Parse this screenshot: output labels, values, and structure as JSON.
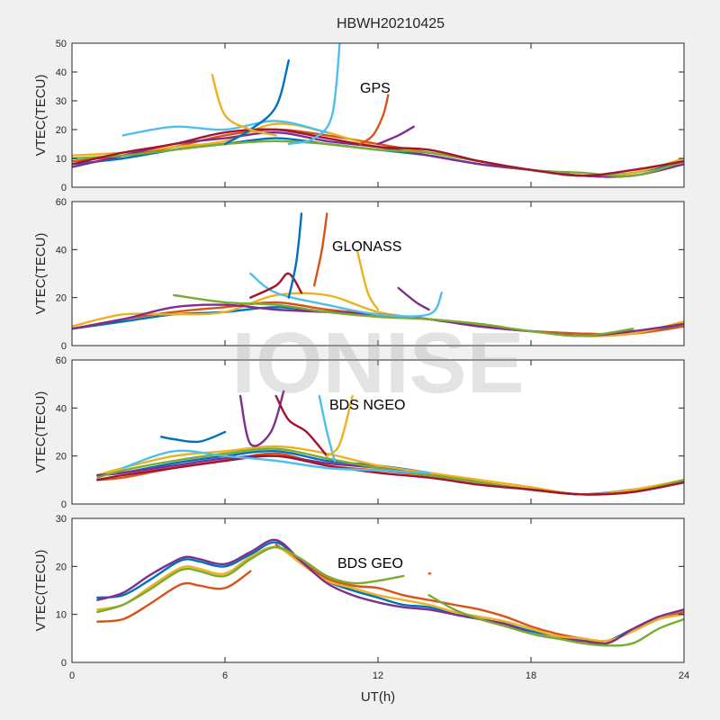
{
  "figure": {
    "title": "HBWH20210425",
    "xlabel": "UT(h)",
    "watermark": "IONISE"
  },
  "colors": [
    "#0072BD",
    "#D95319",
    "#EDB120",
    "#7E2F8E",
    "#77AC30",
    "#4DBEEE",
    "#A2142F"
  ],
  "chart_data": [
    {
      "type": "line",
      "label": "GPS",
      "ylabel": "VTEC(TECU)",
      "xlim": [
        0,
        24
      ],
      "ylim": [
        0,
        50
      ],
      "yticks": [
        0,
        10,
        20,
        30,
        40,
        50
      ],
      "xticks": [
        0,
        6,
        12,
        18,
        24
      ],
      "xticklabels_shown": false,
      "series": [
        {
          "color": "#0072BD",
          "x": [
            0,
            2,
            4,
            6,
            8,
            10,
            12,
            14,
            16,
            18,
            20,
            22,
            24
          ],
          "y": [
            8,
            10,
            13,
            15,
            17,
            15,
            13,
            11,
            8,
            6,
            4,
            5,
            9
          ]
        },
        {
          "color": "#D95319",
          "x": [
            0,
            2,
            4,
            6,
            8,
            10,
            12,
            14,
            16,
            18,
            20,
            22,
            24
          ],
          "y": [
            9,
            11,
            14,
            18,
            20,
            18,
            15,
            12,
            9,
            6,
            4,
            4,
            8
          ]
        },
        {
          "color": "#EDB120",
          "x": [
            0,
            2,
            4,
            6,
            8,
            10,
            12,
            14,
            16,
            18,
            20,
            22,
            24
          ],
          "y": [
            11,
            12,
            14,
            16,
            22,
            19,
            14,
            12,
            9,
            6,
            4,
            5,
            10
          ]
        },
        {
          "color": "#7E2F8E",
          "x": [
            0,
            2,
            4,
            6,
            8,
            10,
            12,
            14,
            16,
            18,
            20,
            22,
            24
          ],
          "y": [
            7,
            11,
            15,
            17,
            19,
            16,
            14,
            11,
            8,
            6,
            4,
            4,
            8
          ]
        },
        {
          "color": "#77AC30",
          "x": [
            0,
            2,
            4,
            6,
            8,
            10,
            12,
            14,
            16,
            18,
            20,
            22,
            24
          ],
          "y": [
            10,
            11,
            13,
            15,
            16,
            15,
            13,
            12,
            9,
            6,
            5,
            4,
            9
          ]
        },
        {
          "color": "#A2142F",
          "x": [
            0,
            2,
            4,
            6,
            8,
            10,
            12,
            14,
            16,
            18,
            20,
            22,
            24
          ],
          "y": [
            8,
            12,
            15,
            19,
            20,
            17,
            14,
            13,
            9,
            6,
            4,
            6,
            9
          ]
        },
        {
          "color": "#4DBEEE",
          "x": [
            2,
            4,
            6,
            8,
            10
          ],
          "y": [
            18,
            21,
            20,
            23,
            19
          ]
        },
        {
          "color": "#0072BD",
          "x": [
            6,
            7,
            8,
            8.5
          ],
          "y": [
            15,
            20,
            28,
            44
          ]
        },
        {
          "color": "#4DBEEE",
          "x": [
            8.5,
            9.5,
            10.2,
            10.5
          ],
          "y": [
            15,
            17,
            25,
            50
          ]
        },
        {
          "color": "#D95319",
          "x": [
            11.3,
            11.8,
            12.2,
            12.4
          ],
          "y": [
            15,
            18,
            25,
            32
          ]
        },
        {
          "color": "#EDB120",
          "x": [
            5.5,
            6,
            7,
            8
          ],
          "y": [
            39,
            25,
            20,
            18
          ]
        },
        {
          "color": "#7E2F8E",
          "x": [
            12,
            12.8,
            13.4
          ],
          "y": [
            15,
            18,
            21
          ]
        }
      ]
    },
    {
      "type": "line",
      "label": "GLONASS",
      "ylabel": "VTEC(TECU)",
      "xlim": [
        0,
        24
      ],
      "ylim": [
        0,
        60
      ],
      "yticks": [
        0,
        20,
        40,
        60
      ],
      "xticks": [
        0,
        6,
        12,
        18,
        24
      ],
      "xticklabels_shown": false,
      "series": [
        {
          "color": "#0072BD",
          "x": [
            0,
            2,
            4,
            6,
            8,
            10,
            12,
            14,
            16,
            18,
            20,
            22,
            24
          ],
          "y": [
            7,
            10,
            13,
            14,
            16,
            14,
            13,
            11,
            8,
            6,
            5,
            5,
            9
          ]
        },
        {
          "color": "#D95319",
          "x": [
            0,
            2,
            4,
            6,
            8,
            10,
            12,
            14,
            16,
            18,
            20,
            22,
            24
          ],
          "y": [
            7,
            11,
            14,
            16,
            18,
            15,
            13,
            11,
            8,
            6,
            5,
            5,
            8
          ]
        },
        {
          "color": "#EDB120",
          "x": [
            0,
            2,
            4,
            6,
            8,
            10,
            12,
            14,
            16,
            18,
            20,
            22,
            24
          ],
          "y": [
            8,
            13,
            13,
            14,
            21,
            21,
            14,
            11,
            9,
            6,
            4,
            5,
            10
          ]
        },
        {
          "color": "#7E2F8E",
          "x": [
            0,
            2,
            4,
            6,
            8,
            10,
            12,
            14,
            16,
            18,
            20,
            22,
            24
          ],
          "y": [
            7,
            11,
            16,
            17,
            15,
            14,
            13,
            11,
            8,
            6,
            4,
            6,
            9
          ]
        },
        {
          "color": "#77AC30",
          "x": [
            4,
            6,
            8,
            10,
            12,
            14,
            16,
            18,
            20,
            22
          ],
          "y": [
            21,
            18,
            17,
            14,
            12,
            11,
            9,
            6,
            4,
            7
          ]
        },
        {
          "color": "#4DBEEE",
          "x": [
            7,
            8,
            10,
            12,
            14,
            14.5
          ],
          "y": [
            30,
            22,
            17,
            13,
            13,
            22
          ]
        },
        {
          "color": "#A2142F",
          "x": [
            7,
            8,
            8.5,
            9
          ],
          "y": [
            20,
            25,
            30,
            22
          ]
        },
        {
          "color": "#0072BD",
          "x": [
            8.5,
            8.8,
            9
          ],
          "y": [
            20,
            35,
            55
          ]
        },
        {
          "color": "#D95319",
          "x": [
            9.5,
            9.8,
            10
          ],
          "y": [
            25,
            40,
            55
          ]
        },
        {
          "color": "#EDB120",
          "x": [
            11.2,
            11.6,
            12
          ],
          "y": [
            39,
            22,
            15
          ]
        },
        {
          "color": "#7E2F8E",
          "x": [
            12.8,
            13.5,
            14
          ],
          "y": [
            24,
            18,
            15
          ]
        }
      ]
    },
    {
      "type": "line",
      "label": "BDS NGEO",
      "ylabel": "VTEC(TECU)",
      "xlim": [
        0,
        24
      ],
      "ylim": [
        0,
        60
      ],
      "yticks": [
        0,
        20,
        40,
        60
      ],
      "xticks": [
        0,
        6,
        12,
        18,
        24
      ],
      "xticklabels_shown": false,
      "series": [
        {
          "color": "#0072BD",
          "x": [
            1,
            2,
            4,
            6,
            8,
            10,
            12,
            14,
            16,
            18,
            20,
            22,
            24
          ],
          "y": [
            12,
            13,
            17,
            20,
            22,
            18,
            16,
            13,
            9,
            6,
            4,
            6,
            9
          ]
        },
        {
          "color": "#D95319",
          "x": [
            1,
            2,
            4,
            6,
            8,
            10,
            12,
            14,
            16,
            18,
            20,
            22,
            24
          ],
          "y": [
            10,
            11,
            15,
            18,
            21,
            16,
            14,
            12,
            9,
            6,
            4,
            5,
            10
          ]
        },
        {
          "color": "#EDB120",
          "x": [
            1,
            2,
            4,
            6,
            8,
            10,
            12,
            14,
            16,
            18,
            20,
            22,
            24
          ],
          "y": [
            12,
            15,
            20,
            22,
            24,
            21,
            16,
            13,
            10,
            7,
            4,
            6,
            10
          ]
        },
        {
          "color": "#7E2F8E",
          "x": [
            1,
            2,
            4,
            6,
            8,
            10,
            12,
            14,
            16,
            18,
            20,
            22,
            24
          ],
          "y": [
            12,
            13,
            16,
            19,
            20,
            17,
            15,
            12,
            9,
            6,
            4,
            5,
            9
          ]
        },
        {
          "color": "#77AC30",
          "x": [
            1,
            2,
            4,
            6,
            8,
            10,
            12,
            14,
            16,
            18,
            20,
            22,
            24
          ],
          "y": [
            11,
            14,
            18,
            21,
            23,
            19,
            15,
            12,
            9,
            6,
            4,
            5,
            10
          ]
        },
        {
          "color": "#A2142F",
          "x": [
            1,
            2,
            4,
            6,
            8,
            10,
            12,
            14,
            16,
            18,
            20,
            22,
            24
          ],
          "y": [
            10,
            12,
            15,
            18,
            20,
            16,
            13,
            11,
            8,
            6,
            4,
            5,
            9
          ]
        },
        {
          "color": "#4DBEEE",
          "x": [
            2,
            4,
            6,
            8,
            10,
            12,
            14
          ],
          "y": [
            15,
            22,
            20,
            18,
            15,
            14,
            13
          ]
        },
        {
          "color": "#7E2F8E",
          "x": [
            6.6,
            7,
            7.8,
            8.3
          ],
          "y": [
            45,
            25,
            30,
            47
          ]
        },
        {
          "color": "#A2142F",
          "x": [
            8,
            8.5,
            9.2,
            10
          ],
          "y": [
            45,
            35,
            30,
            20
          ]
        },
        {
          "color": "#4DBEEE",
          "x": [
            9.7,
            10,
            10.3
          ],
          "y": [
            45,
            30,
            18
          ]
        },
        {
          "color": "#EDB120",
          "x": [
            10,
            10.5,
            11
          ],
          "y": [
            20,
            25,
            45
          ]
        },
        {
          "color": "#0072BD",
          "x": [
            3.5,
            4,
            5,
            6
          ],
          "y": [
            28,
            27,
            26,
            30
          ]
        }
      ]
    },
    {
      "type": "line",
      "label": "BDS GEO",
      "ylabel": "VTEC(TECU)",
      "xlim": [
        0,
        24
      ],
      "ylim": [
        0,
        30
      ],
      "yticks": [
        0,
        10,
        20,
        30
      ],
      "xticks": [
        0,
        6,
        12,
        18,
        24
      ],
      "xticklabels": [
        "0",
        "6",
        "12",
        "18",
        "24"
      ],
      "xticklabels_shown": true,
      "series": [
        {
          "color": "#0072BD",
          "x": [
            1,
            2,
            3,
            4,
            4.5,
            5,
            6,
            7,
            8,
            9,
            10,
            11,
            12,
            13,
            14,
            15,
            16,
            17,
            18,
            19,
            20,
            21,
            22,
            23,
            24
          ],
          "y": [
            13.5,
            14,
            17,
            20.5,
            21.5,
            21,
            20,
            22.5,
            25,
            21,
            17,
            15,
            13.5,
            12,
            11.5,
            10,
            9,
            8,
            6.5,
            5.5,
            4.5,
            4.5,
            7,
            9,
            10.5
          ]
        },
        {
          "color": "#D95319",
          "x": [
            1,
            2,
            3,
            4,
            4.5,
            5,
            6,
            7
          ],
          "y": [
            8.5,
            9,
            12,
            15.5,
            16.5,
            16,
            15.5,
            19
          ]
        },
        {
          "color": "#D95319",
          "x": [
            8,
            9,
            10,
            11,
            12,
            13,
            14,
            15,
            16,
            17,
            18,
            19,
            20,
            21,
            22,
            23,
            24
          ],
          "y": [
            24.5,
            21,
            17.5,
            16,
            15.5,
            14,
            13,
            12,
            11,
            9.5,
            7.5,
            6,
            5,
            4.5,
            6.5,
            9,
            10.5
          ]
        },
        {
          "color": "#EDB120",
          "x": [
            1,
            2,
            3,
            4,
            4.5,
            5,
            6,
            7,
            8,
            9,
            10,
            11,
            12,
            13,
            14,
            15,
            16,
            17,
            18,
            19,
            20,
            21,
            22,
            23,
            24
          ],
          "y": [
            11,
            12,
            15.5,
            19,
            20,
            19.5,
            18.5,
            22,
            24,
            20.5,
            17,
            15.5,
            14,
            13,
            12,
            10.5,
            9.5,
            8.5,
            7,
            5.5,
            5,
            4.5,
            6.5,
            9,
            10
          ]
        },
        {
          "color": "#7E2F8E",
          "x": [
            1,
            2,
            3,
            4,
            4.5,
            5,
            6,
            7,
            8,
            9,
            10,
            11,
            12,
            13,
            14,
            15,
            16,
            17,
            18,
            19,
            20,
            21,
            22,
            23,
            24
          ],
          "y": [
            13,
            14.5,
            18,
            21,
            22,
            21.5,
            20.5,
            23,
            25.5,
            21,
            16.5,
            14,
            12.5,
            11.5,
            11,
            10,
            9,
            8,
            6,
            5,
            4.5,
            4,
            7,
            9.5,
            11
          ]
        },
        {
          "color": "#77AC30",
          "x": [
            1,
            2,
            3,
            4,
            4.5,
            5,
            6,
            7,
            8,
            9,
            10,
            11,
            12,
            13
          ],
          "y": [
            10.5,
            12,
            15,
            18.5,
            19.5,
            19,
            18,
            21.5,
            24,
            21.5,
            18,
            16.5,
            17,
            18
          ]
        },
        {
          "color": "#77AC30",
          "x": [
            14,
            15,
            16,
            17,
            18,
            19,
            20,
            21,
            22,
            23,
            24
          ],
          "y": [
            14,
            11,
            9,
            7.5,
            6,
            5,
            4,
            3.5,
            4,
            7,
            9
          ]
        },
        {
          "color": "#D95319",
          "x": [
            14,
            14.05
          ],
          "y": [
            18.5,
            18.5
          ]
        }
      ]
    }
  ]
}
